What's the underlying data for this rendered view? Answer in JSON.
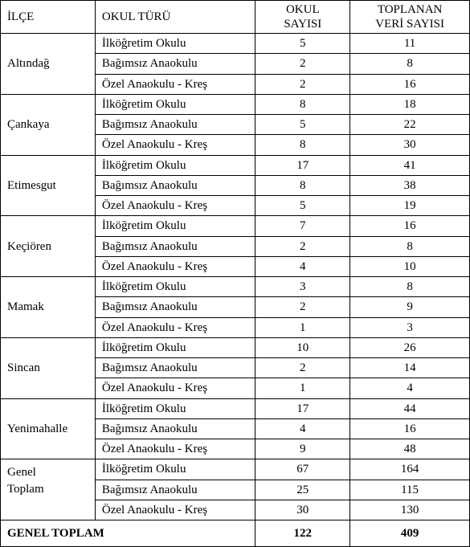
{
  "headers": {
    "ilce": "İLÇE",
    "okulTuru": "OKUL TÜRÜ",
    "okulSayisiLine1": "OKUL",
    "okulSayisiLine2": "SAYISI",
    "veriSayisiLine1": "TOPLANAN",
    "veriSayisiLine2": "VERİ SAYISI"
  },
  "schoolTypes": {
    "ilkogretim": "İlköğretim Okulu",
    "bagimsiz": "Bağımsız Anaokulu",
    "ozel": "Özel Anaokulu - Kreş"
  },
  "districts": [
    {
      "name": "Altındağ",
      "rows": [
        {
          "type": "ilkogretim",
          "okulSayisi": "5",
          "veriSayisi": "11"
        },
        {
          "type": "bagimsiz",
          "okulSayisi": "2",
          "veriSayisi": "8"
        },
        {
          "type": "ozel",
          "okulSayisi": "2",
          "veriSayisi": "16"
        }
      ]
    },
    {
      "name": "Çankaya",
      "rows": [
        {
          "type": "ilkogretim",
          "okulSayisi": "8",
          "veriSayisi": "18"
        },
        {
          "type": "bagimsiz",
          "okulSayisi": "5",
          "veriSayisi": "22"
        },
        {
          "type": "ozel",
          "okulSayisi": "8",
          "veriSayisi": "30"
        }
      ]
    },
    {
      "name": "Etimesgut",
      "rows": [
        {
          "type": "ilkogretim",
          "okulSayisi": "17",
          "veriSayisi": "41"
        },
        {
          "type": "bagimsiz",
          "okulSayisi": "8",
          "veriSayisi": "38"
        },
        {
          "type": "ozel",
          "okulSayisi": "5",
          "veriSayisi": "19"
        }
      ]
    },
    {
      "name": "Keçiören",
      "rows": [
        {
          "type": "ilkogretim",
          "okulSayisi": "7",
          "veriSayisi": "16"
        },
        {
          "type": "bagimsiz",
          "okulSayisi": "2",
          "veriSayisi": "8"
        },
        {
          "type": "ozel",
          "okulSayisi": "4",
          "veriSayisi": "10"
        }
      ]
    },
    {
      "name": "Mamak",
      "rows": [
        {
          "type": "ilkogretim",
          "okulSayisi": "3",
          "veriSayisi": "8"
        },
        {
          "type": "bagimsiz",
          "okulSayisi": "2",
          "veriSayisi": "9"
        },
        {
          "type": "ozel",
          "okulSayisi": "1",
          "veriSayisi": "3"
        }
      ]
    },
    {
      "name": "Sincan",
      "rows": [
        {
          "type": "ilkogretim",
          "okulSayisi": "10",
          "veriSayisi": "26"
        },
        {
          "type": "bagimsiz",
          "okulSayisi": "2",
          "veriSayisi": "14"
        },
        {
          "type": "ozel",
          "okulSayisi": "1",
          "veriSayisi": "4"
        }
      ]
    },
    {
      "name": "Yenimahalle",
      "rows": [
        {
          "type": "ilkogretim",
          "okulSayisi": "17",
          "veriSayisi": "44"
        },
        {
          "type": "bagimsiz",
          "okulSayisi": "4",
          "veriSayisi": "16"
        },
        {
          "type": "ozel",
          "okulSayisi": "9",
          "veriSayisi": "48"
        }
      ]
    },
    {
      "name": "Genel\nToplam",
      "rows": [
        {
          "type": "ilkogretim",
          "okulSayisi": "67",
          "veriSayisi": "164"
        },
        {
          "type": "bagimsiz",
          "okulSayisi": "25",
          "veriSayisi": "115"
        },
        {
          "type": "ozel",
          "okulSayisi": "30",
          "veriSayisi": "130"
        }
      ]
    }
  ],
  "grandTotal": {
    "label": "GENEL TOPLAM",
    "okulSayisi": "122",
    "veriSayisi": "409"
  },
  "style": {
    "borderColor": "#000000",
    "backgroundColor": "#ffffff",
    "fontFamily": "Times New Roman",
    "baseFontSize": 15,
    "tableWidth": 585
  }
}
